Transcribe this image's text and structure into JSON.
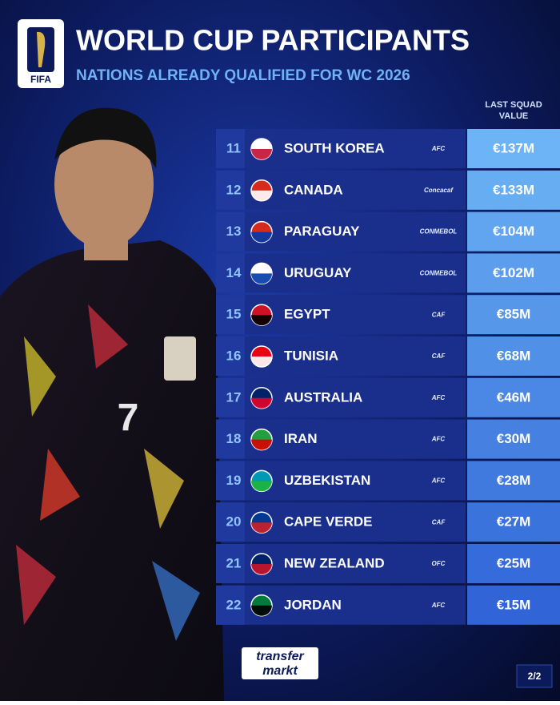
{
  "header": {
    "logo_text": "FIFA",
    "title": "WORLD CUP PARTICIPANTS",
    "subtitle": "NATIONS ALREADY QUALIFIED FOR WC 2026"
  },
  "table": {
    "value_header": "LAST SQUAD VALUE",
    "rows": [
      {
        "rank": 11,
        "country": "SOUTH KOREA",
        "confederation": "AFC",
        "value": "€137M"
      },
      {
        "rank": 12,
        "country": "CANADA",
        "confederation": "Concacaf",
        "value": "€133M"
      },
      {
        "rank": 13,
        "country": "PARAGUAY",
        "confederation": "CONMEBOL",
        "value": "€104M"
      },
      {
        "rank": 14,
        "country": "URUGUAY",
        "confederation": "CONMEBOL",
        "value": "€102M"
      },
      {
        "rank": 15,
        "country": "EGYPT",
        "confederation": "CAF",
        "value": "€85M"
      },
      {
        "rank": 16,
        "country": "TUNISIA",
        "confederation": "CAF",
        "value": "€68M"
      },
      {
        "rank": 17,
        "country": "AUSTRALIA",
        "confederation": "AFC",
        "value": "€46M"
      },
      {
        "rank": 18,
        "country": "IRAN",
        "confederation": "AFC",
        "value": "€30M"
      },
      {
        "rank": 19,
        "country": "UZBEKISTAN",
        "confederation": "AFC",
        "value": "€28M"
      },
      {
        "rank": 20,
        "country": "CAPE VERDE",
        "confederation": "CAF",
        "value": "€27M"
      },
      {
        "rank": 21,
        "country": "NEW ZEALAND",
        "confederation": "OFC",
        "value": "€25M"
      },
      {
        "rank": 22,
        "country": "JORDAN",
        "confederation": "AFC",
        "value": "€15M"
      }
    ]
  },
  "footer": {
    "brand_top": "transfer",
    "brand_bottom": "markt",
    "page": "2/2"
  }
}
